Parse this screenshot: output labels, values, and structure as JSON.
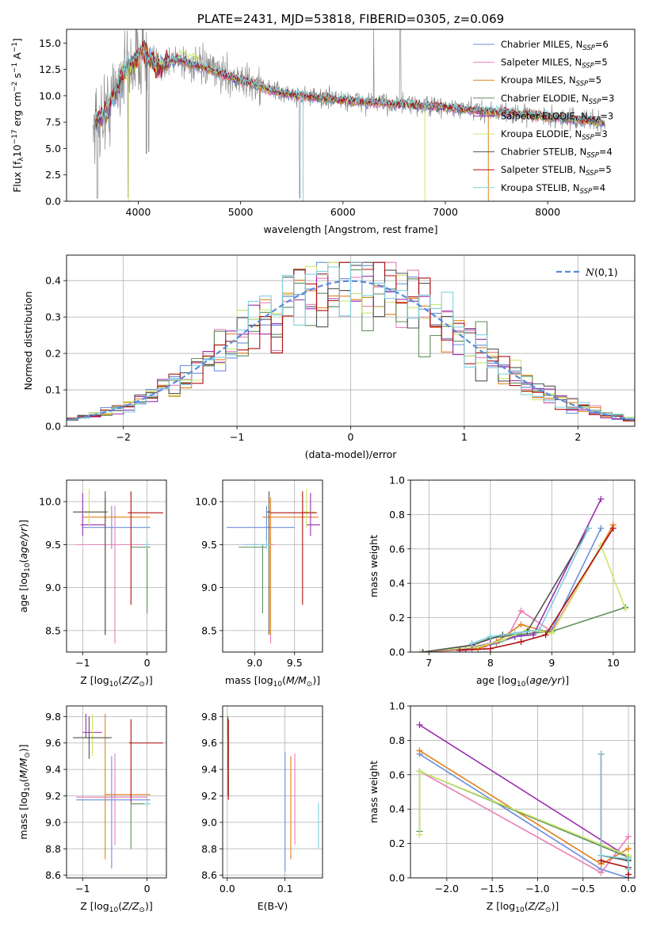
{
  "colors": [
    "#6a8fdc",
    "#e97fb7",
    "#e2801a",
    "#5f8f5b",
    "#9b2fae",
    "#c9e86a",
    "#555555",
    "#b01010",
    "#7fd0de"
  ],
  "chart_data": [
    {
      "id": "spectrum",
      "type": "line",
      "title": "PLATE=2431, MJD=53818, FIBERID=0305, z=0.069",
      "xlabel": "wavelength [Angstrom, rest frame]",
      "ylabel": "Flux [f_λ 10^-17 erg cm^-2 s^-1 A^-1]",
      "xlim": [
        3300,
        8850
      ],
      "ylim": [
        0,
        16.3
      ],
      "xticks": [
        4000,
        5000,
        6000,
        7000,
        8000
      ],
      "yticks": [
        0.0,
        2.5,
        5.0,
        7.5,
        10.0,
        12.5,
        15.0
      ],
      "grid": false,
      "legend_position": "top-right",
      "data_color": "#8c8c8c",
      "continuum": {
        "x": [
          3570,
          3640,
          3700,
          3780,
          3850,
          3950,
          4000,
          4060,
          4100,
          4200,
          4300,
          4400,
          4500,
          4700,
          4900,
          5100,
          5300,
          5500,
          5800,
          6100,
          6400,
          6700,
          7000,
          7300,
          7600,
          7900,
          8200,
          8500,
          8560
        ],
        "y": [
          7.5,
          8.0,
          8.6,
          10.5,
          12.2,
          13.0,
          13.8,
          14.2,
          13.6,
          12.8,
          13.2,
          13.5,
          13.0,
          12.5,
          11.8,
          11.2,
          10.5,
          10.1,
          9.8,
          9.5,
          9.3,
          9.1,
          8.9,
          8.6,
          8.4,
          8.1,
          7.8,
          7.5,
          7.4
        ]
      },
      "series": [
        {
          "name": "Chabrier MILES, N_SSP=6",
          "base": "Chabrier MILES, N",
          "sub": "SSP",
          "suffix": "=6",
          "color": "#6a8fdc"
        },
        {
          "name": "Salpeter MILES, N_SSP=5",
          "base": "Salpeter MILES, N",
          "sub": "SSP",
          "suffix": "=5",
          "color": "#e97fb7"
        },
        {
          "name": "Kroupa MILES, N_SSP=5",
          "base": "Kroupa MILES, N",
          "sub": "SSP",
          "suffix": "=5",
          "color": "#e2801a"
        },
        {
          "name": "Chabrier ELODIE, N_SSP=3",
          "base": "Chabrier ELODIE, N",
          "sub": "SSP",
          "suffix": "=3",
          "color": "#5f8f5b"
        },
        {
          "name": "Salpeter ELODIE, N_SSP=3",
          "base": "Salpeter ELODIE, N",
          "sub": "SSP",
          "suffix": "=3",
          "color": "#9b2fae"
        },
        {
          "name": "Kroupa ELODIE, N_SSP=3",
          "base": "Kroupa ELODIE, N",
          "sub": "SSP",
          "suffix": "=3",
          "color": "#c9e86a"
        },
        {
          "name": "Chabrier STELIB, N_SSP=4",
          "base": "Chabrier STELIB, N",
          "sub": "SSP",
          "suffix": "=4",
          "color": "#555555"
        },
        {
          "name": "Salpeter STELIB, N_SSP=5",
          "base": "Salpeter STELIB, N",
          "sub": "SSP",
          "suffix": "=5",
          "color": "#b01010"
        },
        {
          "name": "Kroupa STELIB, N_SSP=4",
          "base": "Kroupa STELIB, N",
          "sub": "SSP",
          "suffix": "=4",
          "color": "#7fd0de"
        }
      ]
    },
    {
      "id": "residuals",
      "type": "step-histogram",
      "xlabel": "(data-model)/error",
      "ylabel": "Normed distribution",
      "xlim": [
        -2.5,
        2.5
      ],
      "ylim": [
        0,
        0.47
      ],
      "xticks": [
        -2,
        -1,
        0,
        1,
        2
      ],
      "yticks": [
        0.0,
        0.1,
        0.2,
        0.3,
        0.4
      ],
      "grid": true,
      "legend_position": "top-right",
      "gaussian": {
        "name": "N(0,1)",
        "mean": 0,
        "sigma": 1,
        "color": "#5b8bd8"
      }
    },
    {
      "id": "age-vs-Z",
      "type": "errorbar",
      "xlabel": "Z [log10(Z/Z⊙)]",
      "ylabel": "age [log10(age/yr)]",
      "xlim": [
        -1.25,
        0.3
      ],
      "ylim": [
        8.25,
        10.25
      ],
      "xticks": [
        -1,
        0
      ],
      "yticks": [
        8.5,
        9.0,
        9.5,
        10.0
      ],
      "grid": true,
      "points": [
        {
          "x": -0.55,
          "xlo": -1.0,
          "xhi": 0.05,
          "y": 9.7,
          "ylo": 9.45,
          "yhi": 9.95,
          "color": "#6a8fdc"
        },
        {
          "x": -0.5,
          "xlo": -1.1,
          "xhi": 0.05,
          "y": 9.5,
          "ylo": 8.35,
          "yhi": 9.95,
          "color": "#e97fb7"
        },
        {
          "x": -0.65,
          "xlo": -1.0,
          "xhi": 0.05,
          "y": 9.82,
          "ylo": 8.45,
          "yhi": 10.05,
          "color": "#e2801a"
        },
        {
          "x": 0.0,
          "xlo": -0.25,
          "xhi": 0.05,
          "y": 9.47,
          "ylo": 8.7,
          "yhi": 9.5,
          "color": "#5f8f5b"
        },
        {
          "x": -1.0,
          "xlo": -1.03,
          "xhi": -0.65,
          "y": 9.73,
          "ylo": 9.6,
          "yhi": 10.1,
          "color": "#9b2fae"
        },
        {
          "x": -0.9,
          "xlo": -1.15,
          "xhi": -0.6,
          "y": 9.88,
          "ylo": 9.7,
          "yhi": 10.15,
          "color": "#c9e86a"
        },
        {
          "x": -0.65,
          "xlo": -1.15,
          "xhi": -0.62,
          "y": 9.88,
          "ylo": 8.45,
          "yhi": 10.12,
          "color": "#555555"
        },
        {
          "x": -0.25,
          "xlo": -0.3,
          "xhi": 0.25,
          "y": 9.87,
          "ylo": 8.8,
          "yhi": 10.12,
          "color": "#b01010"
        },
        {
          "x": 0.0,
          "xlo": -0.05,
          "xhi": 0.05,
          "y": 9.5,
          "ylo": 9.45,
          "yhi": 9.55,
          "color": "#7fd0de"
        }
      ]
    },
    {
      "id": "age-vs-mass",
      "type": "errorbar",
      "xlabel": "mass [log10(M/M⊙)]",
      "ylabel": "",
      "xlim": [
        8.6,
        9.85
      ],
      "ylim": [
        8.25,
        10.25
      ],
      "xticks": [
        9.0,
        9.5
      ],
      "yticks": [
        8.5,
        9.0,
        9.5,
        10.0
      ],
      "grid": true,
      "points": [
        {
          "x": 9.15,
          "xlo": 8.65,
          "xhi": 9.5,
          "y": 9.7,
          "ylo": 9.45,
          "yhi": 9.95,
          "color": "#6a8fdc"
        },
        {
          "x": 9.2,
          "xlo": 8.85,
          "xhi": 9.25,
          "y": 9.5,
          "ylo": 8.35,
          "yhi": 9.95,
          "color": "#e97fb7"
        },
        {
          "x": 9.2,
          "xlo": 9.1,
          "xhi": 9.8,
          "y": 9.82,
          "ylo": 8.45,
          "yhi": 10.05,
          "color": "#e2801a"
        },
        {
          "x": 9.1,
          "xlo": 8.8,
          "xhi": 9.15,
          "y": 9.47,
          "ylo": 8.7,
          "yhi": 9.5,
          "color": "#5f8f5b"
        },
        {
          "x": 9.7,
          "xlo": 9.65,
          "xhi": 9.82,
          "y": 9.73,
          "ylo": 9.6,
          "yhi": 10.1,
          "color": "#9b2fae"
        },
        {
          "x": 9.65,
          "xlo": 9.6,
          "xhi": 9.75,
          "y": 9.88,
          "ylo": 9.7,
          "yhi": 10.15,
          "color": "#c9e86a"
        },
        {
          "x": 9.18,
          "xlo": 9.15,
          "xhi": 9.2,
          "y": 9.88,
          "ylo": 8.45,
          "yhi": 10.12,
          "color": "#555555"
        },
        {
          "x": 9.6,
          "xlo": 9.2,
          "xhi": 9.78,
          "y": 9.87,
          "ylo": 8.8,
          "yhi": 10.12,
          "color": "#b01010"
        },
        {
          "x": 9.15,
          "xlo": 8.85,
          "xhi": 9.2,
          "y": 9.5,
          "ylo": 9.45,
          "yhi": 9.55,
          "color": "#7fd0de"
        }
      ]
    },
    {
      "id": "weight-vs-age",
      "type": "line",
      "xlabel": "age [log10(age/yr)]",
      "ylabel": "mass weight",
      "xlim": [
        6.7,
        10.35
      ],
      "ylim": [
        0,
        1.0
      ],
      "xticks": [
        7,
        8,
        9,
        10
      ],
      "yticks": [
        0.0,
        0.2,
        0.4,
        0.6,
        0.8,
        1.0
      ],
      "grid": true,
      "series": [
        {
          "color": "#6a8fdc",
          "x": [
            6.9,
            7.7,
            8.1,
            8.5,
            9.0,
            9.8
          ],
          "y": [
            0.0,
            0.02,
            0.05,
            0.1,
            0.13,
            0.72
          ]
        },
        {
          "color": "#e97fb7",
          "x": [
            6.9,
            7.9,
            8.3,
            8.5,
            9.0,
            9.8
          ],
          "y": [
            0.0,
            0.03,
            0.1,
            0.24,
            0.12,
            0.62
          ]
        },
        {
          "color": "#e2801a",
          "x": [
            6.9,
            7.8,
            8.1,
            8.5,
            9.0,
            10.0
          ],
          "y": [
            0.0,
            0.02,
            0.06,
            0.16,
            0.11,
            0.74
          ]
        },
        {
          "color": "#5f8f5b",
          "x": [
            6.9,
            7.7,
            8.0,
            8.4,
            9.0,
            10.2
          ],
          "y": [
            0.0,
            0.04,
            0.08,
            0.1,
            0.12,
            0.26
          ]
        },
        {
          "color": "#9b2fae",
          "x": [
            6.9,
            7.6,
            8.0,
            8.4,
            8.7,
            9.8
          ],
          "y": [
            0.0,
            0.02,
            0.05,
            0.09,
            0.1,
            0.89
          ]
        },
        {
          "color": "#c9e86a",
          "x": [
            6.85,
            7.8,
            8.2,
            8.6,
            9.0,
            9.8,
            10.2
          ],
          "y": [
            0.0,
            0.03,
            0.07,
            0.13,
            0.11,
            0.62,
            0.25
          ]
        },
        {
          "color": "#555555",
          "x": [
            6.9,
            7.7,
            8.2,
            8.6,
            9.6
          ],
          "y": [
            0.0,
            0.04,
            0.1,
            0.12,
            0.72
          ]
        },
        {
          "color": "#b01010",
          "x": [
            7.5,
            8.0,
            8.5,
            8.9,
            10.0
          ],
          "y": [
            0.01,
            0.02,
            0.06,
            0.1,
            0.72
          ]
        },
        {
          "color": "#7fd0de",
          "x": [
            7.7,
            8.0,
            8.4,
            8.8,
            9.6
          ],
          "y": [
            0.05,
            0.09,
            0.11,
            0.13,
            0.72
          ]
        }
      ]
    },
    {
      "id": "mass-vs-Z",
      "type": "errorbar",
      "xlabel": "Z [log10(Z/Z⊙)]",
      "ylabel": "mass [log10(M/M⊙)]",
      "xlim": [
        -1.25,
        0.3
      ],
      "ylim": [
        8.58,
        9.88
      ],
      "xticks": [
        -1,
        0
      ],
      "yticks": [
        8.6,
        8.8,
        9.0,
        9.2,
        9.4,
        9.6,
        9.8
      ],
      "grid": true,
      "points": [
        {
          "x": -0.55,
          "xlo": -1.1,
          "xhi": 0.05,
          "y": 9.17,
          "ylo": 8.65,
          "yhi": 9.5,
          "color": "#6a8fdc"
        },
        {
          "x": -0.5,
          "xlo": -1.1,
          "xhi": 0.0,
          "y": 9.19,
          "ylo": 8.83,
          "yhi": 9.52,
          "color": "#e97fb7"
        },
        {
          "x": -0.65,
          "xlo": -0.65,
          "xhi": 0.05,
          "y": 9.21,
          "ylo": 8.72,
          "yhi": 9.82,
          "color": "#e2801a"
        },
        {
          "x": -0.25,
          "xlo": -0.25,
          "xhi": 0.05,
          "y": 9.14,
          "ylo": 8.8,
          "yhi": 9.15,
          "color": "#5f8f5b"
        },
        {
          "x": -0.95,
          "xlo": -1.0,
          "xhi": -0.7,
          "y": 9.68,
          "ylo": 9.64,
          "yhi": 9.82,
          "color": "#9b2fae"
        },
        {
          "x": -0.85,
          "xlo": -1.15,
          "xhi": -0.55,
          "y": 9.64,
          "ylo": 9.5,
          "yhi": 9.82,
          "color": "#c9e86a"
        },
        {
          "x": -0.9,
          "xlo": -1.15,
          "xhi": -0.55,
          "y": 9.64,
          "ylo": 9.48,
          "yhi": 9.8,
          "color": "#555555"
        },
        {
          "x": -0.25,
          "xlo": -0.28,
          "xhi": 0.25,
          "y": 9.6,
          "ylo": 9.15,
          "yhi": 9.78,
          "color": "#b01010"
        },
        {
          "x": 0.0,
          "xlo": -0.05,
          "xhi": 0.05,
          "y": 9.14,
          "ylo": 9.12,
          "yhi": 9.16,
          "color": "#7fd0de"
        }
      ]
    },
    {
      "id": "mass-vs-EBV",
      "type": "errorbar",
      "xlabel": "E(B-V)",
      "ylabel": "",
      "xlim": [
        -0.008,
        0.165
      ],
      "ylim": [
        8.58,
        9.88
      ],
      "xticks": [
        0.0,
        0.1
      ],
      "yticks": [
        8.6,
        8.8,
        9.0,
        9.2,
        9.4,
        9.6,
        9.8
      ],
      "grid": true,
      "points": [
        {
          "x": 0.1,
          "y": 9.1,
          "ylo": 8.63,
          "yhi": 9.53,
          "color": "#6a8fdc"
        },
        {
          "x": 0.117,
          "y": 9.2,
          "ylo": 8.83,
          "yhi": 9.52,
          "color": "#e97fb7"
        },
        {
          "x": 0.11,
          "y": 9.1,
          "ylo": 8.72,
          "yhi": 9.5,
          "color": "#e2801a"
        },
        {
          "x": 0.001,
          "y": 9.6,
          "ylo": 9.2,
          "yhi": 9.8,
          "color": "#5f8f5b"
        },
        {
          "x": 0.0,
          "y": 9.8,
          "ylo": 9.64,
          "yhi": 9.82,
          "color": "#9b2fae"
        },
        {
          "x": 0.0,
          "y": 9.7,
          "ylo": 9.5,
          "yhi": 9.82,
          "color": "#c9e86a"
        },
        {
          "x": 0.001,
          "y": 9.5,
          "ylo": 9.4,
          "yhi": 9.8,
          "color": "#555555"
        },
        {
          "x": 0.002,
          "y": 9.5,
          "ylo": 9.17,
          "yhi": 9.78,
          "color": "#b01010"
        },
        {
          "x": 0.158,
          "y": 9.0,
          "ylo": 8.8,
          "yhi": 9.15,
          "color": "#7fd0de"
        }
      ]
    },
    {
      "id": "weight-vs-Z",
      "type": "line",
      "xlabel": "Z [log10(Z/Z⊙)]",
      "ylabel": "mass weight",
      "xlim": [
        -2.4,
        0.07
      ],
      "ylim": [
        0,
        1.0
      ],
      "xticks": [
        -2.0,
        -1.5,
        -1.0,
        -0.5,
        0.0
      ],
      "yticks": [
        0.0,
        0.2,
        0.4,
        0.6,
        0.8,
        1.0
      ],
      "grid": true,
      "series": [
        {
          "color": "#6a8fdc",
          "x": [
            -2.3,
            -0.3,
            0.0
          ],
          "y": [
            0.72,
            0.05,
            0.0
          ]
        },
        {
          "color": "#e97fb7",
          "x": [
            -2.3,
            -0.3,
            0.0
          ],
          "y": [
            0.62,
            0.03,
            0.24
          ]
        },
        {
          "color": "#e2801a",
          "x": [
            -2.3,
            -0.3,
            0.0
          ],
          "y": [
            0.74,
            0.08,
            0.17
          ]
        },
        {
          "color": "#5f8f5b",
          "x": [
            -2.3,
            -2.3,
            0.0,
            0.0
          ],
          "y": [
            0.27,
            0.62,
            0.12,
            0.1
          ]
        },
        {
          "color": "#9b2fae",
          "x": [
            -2.3,
            0.0,
            0.0
          ],
          "y": [
            0.89,
            0.12,
            0.1
          ]
        },
        {
          "color": "#c9e86a",
          "x": [
            -2.3,
            -2.3,
            0.0,
            0.0
          ],
          "y": [
            0.25,
            0.62,
            0.13,
            0.12
          ]
        },
        {
          "color": "#555555",
          "x": [
            -0.3,
            -0.3,
            0.0,
            0.0
          ],
          "y": [
            0.72,
            0.13,
            0.1,
            0.02
          ]
        },
        {
          "color": "#b01010",
          "x": [
            -0.3,
            -0.3,
            0.0,
            0.0
          ],
          "y": [
            0.72,
            0.1,
            0.06,
            0.02
          ]
        },
        {
          "color": "#7fd0de",
          "x": [
            -0.3,
            -0.3,
            0.0,
            0.0
          ],
          "y": [
            0.72,
            0.13,
            0.11,
            0.05
          ]
        }
      ]
    }
  ]
}
